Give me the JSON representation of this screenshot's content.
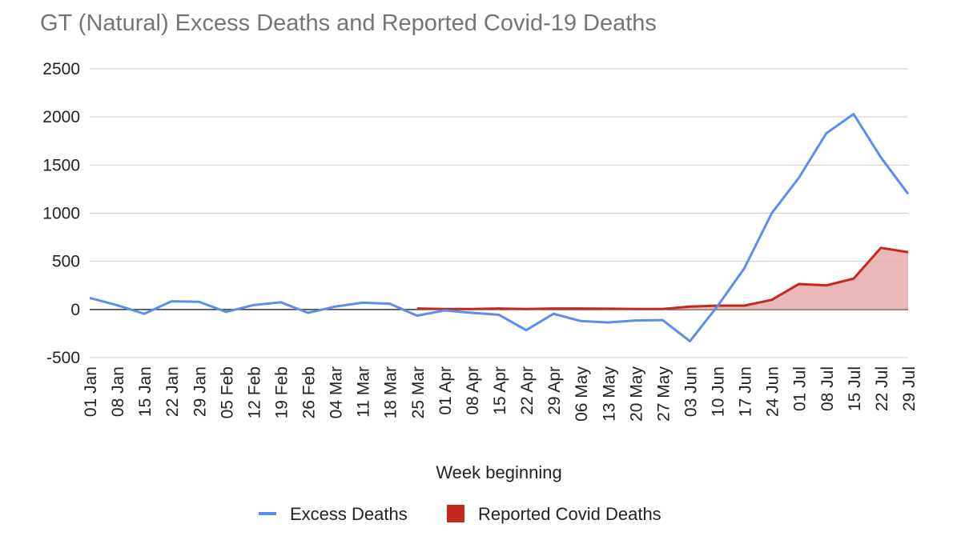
{
  "chart_data": {
    "type": "line",
    "title": "GT (Natural) Excess Deaths and Reported Covid-19 Deaths",
    "xlabel": "Week beginning",
    "ylabel": "",
    "ylim": [
      -500,
      2500
    ],
    "yticks": [
      -500,
      0,
      500,
      1000,
      1500,
      2000,
      2500
    ],
    "grid": true,
    "legend_position": "bottom",
    "categories": [
      "01 Jan",
      "08 Jan",
      "15 Jan",
      "22 Jan",
      "29 Jan",
      "05 Feb",
      "12 Feb",
      "19 Feb",
      "26 Feb",
      "04 Mar",
      "11 Mar",
      "18 Mar",
      "25 Mar",
      "01 Apr",
      "08 Apr",
      "15 Apr",
      "22 Apr",
      "29 Apr",
      "06 May",
      "13 May",
      "20 May",
      "27 May",
      "03 Jun",
      "10 Jun",
      "17 Jun",
      "24 Jun",
      "01 Jul",
      "08 Jul",
      "15 Jul",
      "22 Jul",
      "29 Jul"
    ],
    "series": [
      {
        "name": "Excess Deaths",
        "kind": "line",
        "color": "#5b8def",
        "values": [
          120,
          45,
          -45,
          85,
          80,
          -25,
          45,
          75,
          -35,
          30,
          70,
          60,
          -65,
          -10,
          -35,
          -55,
          -215,
          -45,
          -120,
          -135,
          -115,
          -110,
          -330,
          30,
          430,
          1000,
          1370,
          1830,
          2030,
          1580,
          1200
        ]
      },
      {
        "name": "Reported Covid Deaths",
        "kind": "area",
        "color": "#c5281c",
        "fill": "#e6acac",
        "values": [
          null,
          null,
          null,
          null,
          null,
          null,
          null,
          null,
          null,
          null,
          null,
          null,
          10,
          5,
          5,
          10,
          5,
          10,
          10,
          8,
          5,
          5,
          30,
          40,
          40,
          100,
          265,
          250,
          320,
          640,
          595
        ]
      }
    ]
  }
}
